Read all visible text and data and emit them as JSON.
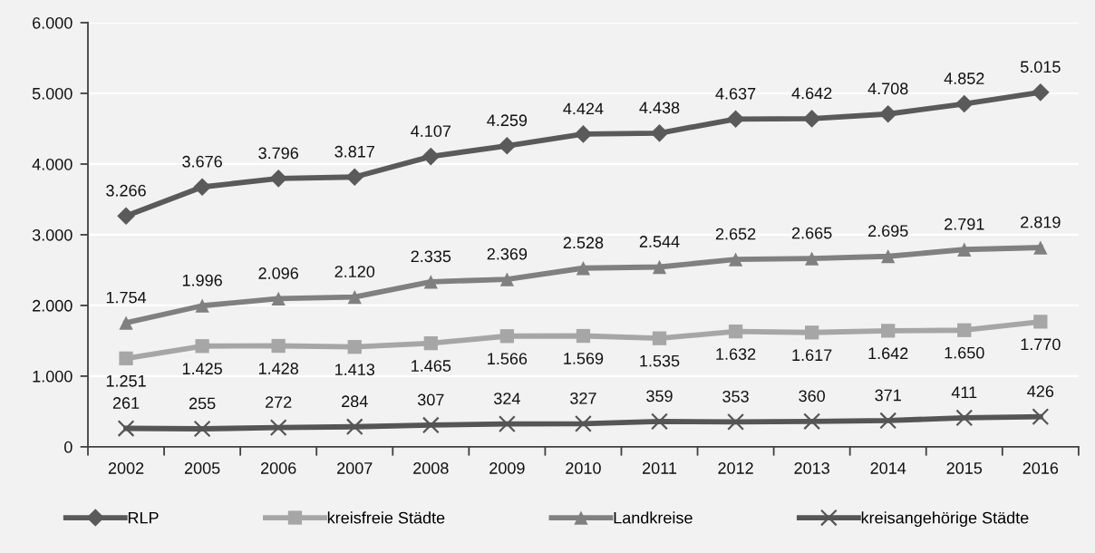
{
  "chart_data": {
    "type": "line",
    "categories": [
      "2002",
      "2005",
      "2006",
      "2007",
      "2008",
      "2009",
      "2010",
      "2011",
      "2012",
      "2013",
      "2014",
      "2015",
      "2016"
    ],
    "ylim": [
      0,
      6000
    ],
    "yticks": [
      0,
      {
        "value": 1000,
        "label": "1.000"
      },
      {
        "value": 2000,
        "label": "2.000"
      },
      {
        "value": 3000,
        "label": "3.000"
      },
      {
        "value": 4000,
        "label": "4.000"
      },
      {
        "value": 5000,
        "label": "5.000"
      },
      {
        "value": 6000,
        "label": "6.000"
      }
    ],
    "grid": "y",
    "legend": "bottom",
    "series": [
      {
        "name": "RLP",
        "color": "#5a5a5a",
        "marker": "diamond",
        "values": [
          3266,
          3676,
          3796,
          3817,
          4107,
          4259,
          4424,
          4438,
          4637,
          4642,
          4708,
          4852,
          5015
        ],
        "value_labels": [
          "3.266",
          "3.676",
          "3.796",
          "3.817",
          "4.107",
          "4.259",
          "4.424",
          "4.438",
          "4.637",
          "4.642",
          "4.708",
          "4.852",
          "5.015"
        ]
      },
      {
        "name": "kreisfreie Städte",
        "color": "#a6a6a6",
        "marker": "square",
        "values": [
          1251,
          1425,
          1428,
          1413,
          1465,
          1566,
          1569,
          1535,
          1632,
          1617,
          1642,
          1650,
          1770
        ],
        "value_labels": [
          "1.251",
          "1.425",
          "1.428",
          "1.413",
          "1.465",
          "1.566",
          "1.569",
          "1.535",
          "1.632",
          "1.617",
          "1.642",
          "1.650",
          "1.770"
        ]
      },
      {
        "name": "Landkreise",
        "color": "#808080",
        "marker": "triangle",
        "values": [
          1754,
          1996,
          2096,
          2120,
          2335,
          2369,
          2528,
          2544,
          2652,
          2665,
          2695,
          2791,
          2819
        ],
        "value_labels": [
          "1.754",
          "1.996",
          "2.096",
          "2.120",
          "2.335",
          "2.369",
          "2.528",
          "2.544",
          "2.652",
          "2.665",
          "2.695",
          "2.791",
          "2.819"
        ]
      },
      {
        "name": "kreisangehörige Städte",
        "color": "#555555",
        "marker": "cross",
        "values": [
          261,
          255,
          272,
          284,
          307,
          324,
          327,
          359,
          353,
          360,
          371,
          411,
          426
        ],
        "value_labels": [
          "261",
          "255",
          "272",
          "284",
          "307",
          "324",
          "327",
          "359",
          "353",
          "360",
          "371",
          "411",
          "426"
        ]
      }
    ]
  }
}
